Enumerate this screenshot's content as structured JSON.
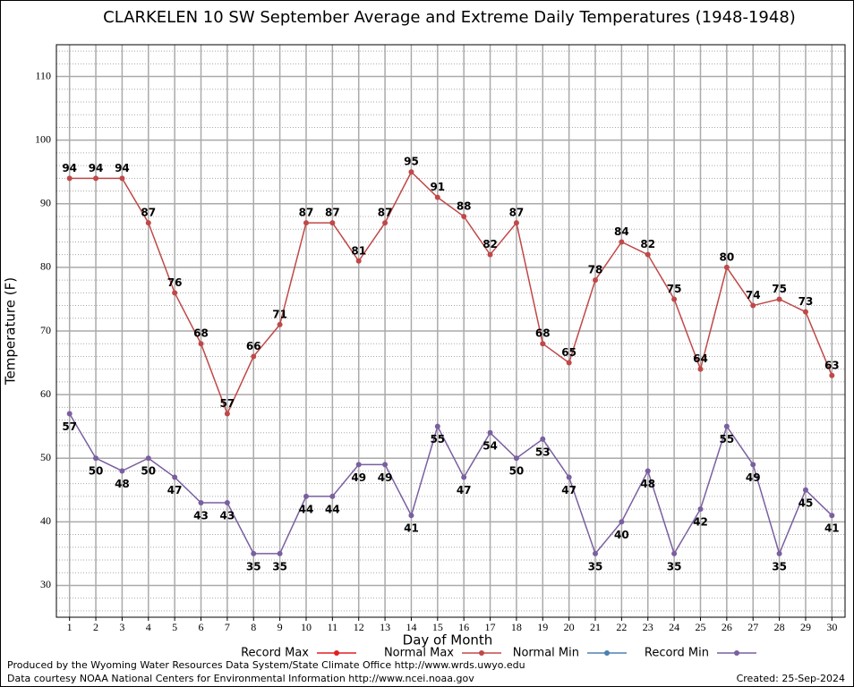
{
  "chart_data": {
    "type": "line",
    "title": "CLARKELEN 10 SW September Average and Extreme Daily Temperatures (1948-1948)",
    "x_label": "Day of Month",
    "y_label": "Temperature (F)",
    "x": [
      1,
      2,
      3,
      4,
      5,
      6,
      7,
      8,
      9,
      10,
      11,
      12,
      13,
      14,
      15,
      16,
      17,
      18,
      19,
      20,
      21,
      22,
      23,
      24,
      25,
      26,
      27,
      28,
      29,
      30
    ],
    "xlim": [
      0.5,
      30.5
    ],
    "xticks": [
      1,
      2,
      3,
      4,
      5,
      6,
      7,
      8,
      9,
      10,
      11,
      12,
      13,
      14,
      15,
      16,
      17,
      18,
      19,
      20,
      21,
      22,
      23,
      24,
      25,
      26,
      27,
      28,
      29,
      30
    ],
    "ylim": [
      25,
      115
    ],
    "yticks": [
      30,
      40,
      50,
      60,
      70,
      80,
      90,
      100,
      110
    ],
    "yminorticks": [
      26,
      28,
      32,
      34,
      36,
      38,
      42,
      44,
      46,
      48,
      52,
      54,
      56,
      58,
      62,
      64,
      66,
      68,
      72,
      74,
      76,
      78,
      82,
      84,
      86,
      88,
      92,
      94,
      96,
      98,
      102,
      104,
      106,
      108,
      112,
      114
    ],
    "grid": true,
    "series": [
      {
        "name": "Record Max",
        "color": "#e02020",
        "values": [
          null,
          null,
          null,
          null,
          null,
          null,
          null,
          null,
          null,
          null,
          null,
          null,
          null,
          null,
          null,
          null,
          null,
          null,
          null,
          null,
          null,
          null,
          null,
          null,
          null,
          null,
          null,
          null,
          null,
          null
        ]
      },
      {
        "name": "Normal Max",
        "color": "#c04848",
        "values": [
          94,
          94,
          94,
          87,
          76,
          68,
          57,
          66,
          71,
          87,
          87,
          81,
          87,
          95,
          91,
          88,
          82,
          87,
          68,
          65,
          78,
          84,
          82,
          75,
          64,
          80,
          74,
          75,
          73,
          63
        ],
        "label_side": "above"
      },
      {
        "name": "Normal Min",
        "color": "#4c80b0",
        "values": [
          null,
          null,
          null,
          null,
          null,
          null,
          null,
          null,
          null,
          null,
          null,
          null,
          null,
          null,
          null,
          null,
          null,
          null,
          null,
          null,
          null,
          null,
          null,
          null,
          null,
          null,
          null,
          null,
          null,
          null
        ]
      },
      {
        "name": "Record Min",
        "color": "#7a5fa0",
        "values": [
          57,
          50,
          48,
          50,
          47,
          43,
          43,
          35,
          35,
          44,
          44,
          49,
          49,
          41,
          55,
          47,
          54,
          50,
          53,
          47,
          35,
          40,
          48,
          35,
          42,
          55,
          49,
          35,
          45,
          41
        ],
        "label_side": "below"
      }
    ],
    "footer": [
      "Produced by the Wyoming Water Resources Data System/State Climate Office http://www.wrds.uwyo.edu",
      "Data courtesy NOAA National Centers for Environmental Information http://www.ncei.noaa.gov"
    ],
    "created": "Created:  25-Sep-2024"
  }
}
